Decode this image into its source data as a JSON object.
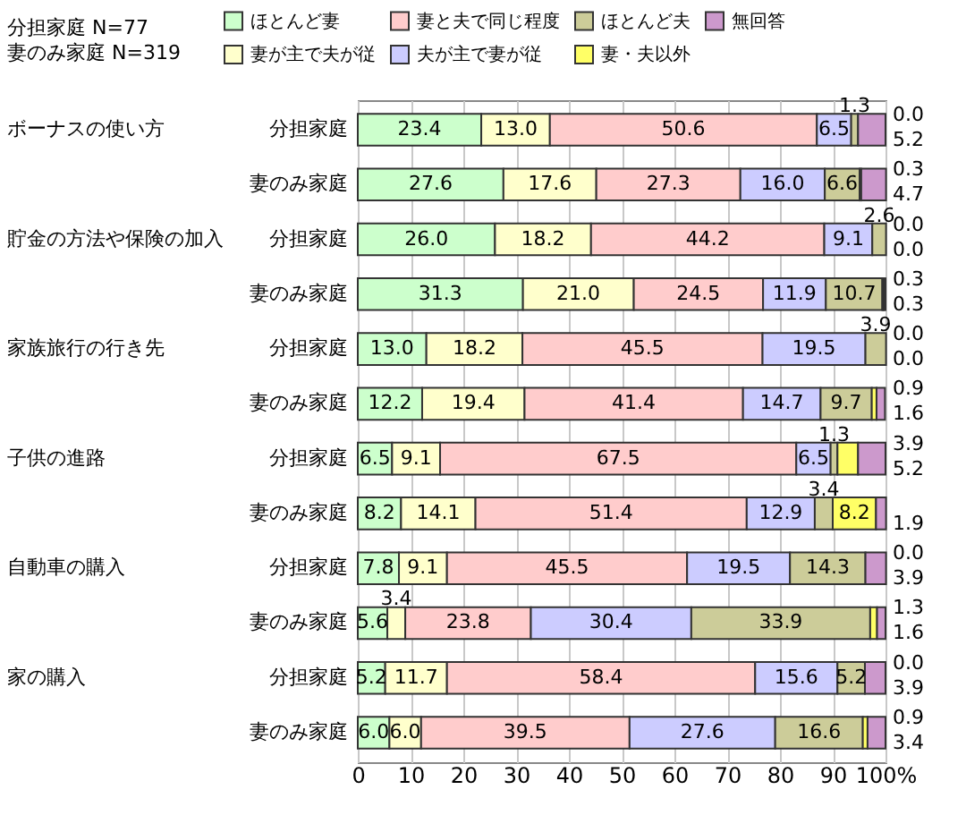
{
  "chart_data": {
    "type": "bar",
    "orientation": "horizontal",
    "stacked": true,
    "grid": "x",
    "legend": "top",
    "categories": [
      "分担家庭",
      "妻のみ家庭",
      "分担家庭",
      "妻のみ家庭",
      "分担家庭",
      "妻のみ家庭",
      "分担家庭",
      "妻のみ家庭",
      "分担家庭",
      "妻のみ家庭",
      "分担家庭",
      "妻のみ家庭"
    ],
    "xlim": [
      0,
      100
    ],
    "xticks": [
      0,
      10,
      20,
      30,
      40,
      50,
      60,
      70,
      80,
      90,
      {
        "value": 100,
        "label": "100%"
      }
    ],
    "annotations": [
      "分担家庭 N=77",
      "妻のみ家庭 N=319",
      "ボーナスの使い方",
      "貯金の方法や保険の加入",
      "家族旅行の行き先",
      "子供の進路",
      "自動車の購入",
      "家の購入"
    ],
    "series": [
      {
        "name": "ほとんど妻",
        "color": "#ccffcc",
        "values": [
          23.4,
          27.6,
          26.0,
          31.3,
          13.0,
          12.2,
          6.5,
          8.2,
          7.8,
          5.6,
          5.2,
          6.0
        ],
        "value_labels": [
          "23.4",
          "27.6",
          "26.0",
          "31.3",
          "13.0",
          "12.2",
          "6.5",
          "8.2",
          "7.8",
          "5.6",
          "5.2",
          "6.0"
        ]
      },
      {
        "name": "妻が主で夫が従",
        "color": "#ffffcc",
        "values": [
          13.0,
          17.6,
          18.2,
          21.0,
          18.2,
          19.4,
          9.1,
          14.1,
          9.1,
          3.4,
          11.7,
          6.0
        ],
        "value_labels": [
          "13.0",
          "17.6",
          "18.2",
          "21.0",
          "18.2",
          "19.4",
          "9.1",
          "14.1",
          "9.1",
          "3.4",
          "11.7",
          "6.0"
        ]
      },
      {
        "name": "妻と夫で同じ程度",
        "color": "#ffcccc",
        "values": [
          50.6,
          27.3,
          44.2,
          24.5,
          45.5,
          41.4,
          67.5,
          51.4,
          45.5,
          23.8,
          58.4,
          39.5
        ],
        "value_labels": [
          "50.6",
          "27.3",
          "44.2",
          "24.5",
          "45.5",
          "41.4",
          "67.5",
          "51.4",
          "45.5",
          "23.8",
          "58.4",
          "39.5"
        ]
      },
      {
        "name": "夫が主で妻が従",
        "color": "#ccccff",
        "values": [
          6.5,
          16.0,
          9.1,
          11.9,
          19.5,
          14.7,
          6.5,
          12.9,
          19.5,
          30.4,
          15.6,
          27.6
        ],
        "value_labels": [
          "6.5",
          "16.0",
          "9.1",
          "11.9",
          "19.5",
          "14.7",
          "6.5",
          "12.9",
          "19.5",
          "30.4",
          "15.6",
          "27.6"
        ]
      },
      {
        "name": "ほとんど夫",
        "color": "#cccc99",
        "values": [
          1.3,
          6.6,
          2.6,
          10.7,
          3.9,
          9.7,
          1.3,
          3.4,
          14.3,
          33.9,
          5.2,
          16.6
        ],
        "value_labels": [
          "1.3",
          "6.6",
          "2.6",
          "10.7",
          "3.9",
          "9.7",
          "1.3",
          "3.4",
          "14.3",
          "33.9",
          "5.2",
          "16.6"
        ]
      },
      {
        "name": "妻・夫以外",
        "color": "#ffff66",
        "values": [
          0.0,
          0.3,
          0.0,
          0.3,
          0.0,
          0.9,
          3.9,
          8.2,
          0.0,
          1.3,
          0.0,
          0.9
        ],
        "value_labels": [
          "0.0",
          "0.3",
          "0.0",
          "0.3",
          "0.0",
          "0.9",
          "3.9",
          "8.2",
          "0.0",
          "1.3",
          "0.0",
          "0.9"
        ]
      },
      {
        "name": "無回答",
        "color": "#cc99cc",
        "values": [
          5.2,
          4.7,
          0.0,
          0.3,
          0.0,
          1.6,
          5.2,
          1.9,
          3.9,
          1.6,
          3.9,
          3.4
        ],
        "value_labels": [
          "5.2",
          "4.7",
          "0.0",
          "0.3",
          "0.0",
          "1.6",
          "5.2",
          "1.9",
          "3.9",
          "1.6",
          "3.9",
          "3.4"
        ]
      }
    ]
  }
}
